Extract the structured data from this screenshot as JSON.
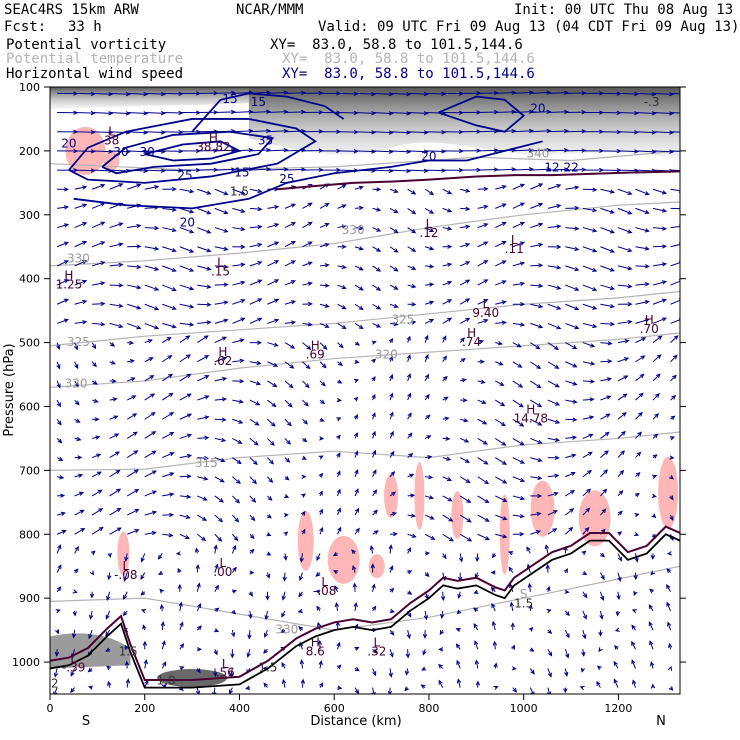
{
  "header": {
    "model": "SEAC4RS 15km ARW",
    "org": "NCAR/MMM",
    "init": "Init: 00 UTC Thu 08 Aug 13",
    "fcst_label": "Fcst:",
    "fcst_value": "33 h",
    "valid": "Valid: 09 UTC Fri 09 Aug 13 (04 CDT Fri 09 Aug 13)"
  },
  "fields": [
    {
      "name": "Potential vorticity",
      "xy": "XY=  83.0, 58.8 to 101.5,144.6",
      "color": "#000000"
    },
    {
      "name": "Potential temperature",
      "xy": "XY=  83.0, 58.8 to 101.5,144.6",
      "color": "#b4b4b4"
    },
    {
      "name": "Horizontal wind speed",
      "xy": "XY=  83.0, 58.8 to 101.5,144.6",
      "color": "#00008b"
    }
  ],
  "colors": {
    "wind": "#00008b",
    "theta": "#b4b4b4",
    "pv_fill": "#ffb6b6",
    "terrain": "#000000",
    "tropopause": "#4b0032"
  },
  "chart_data": {
    "type": "line",
    "title": "",
    "xlabel": "Distance (km)",
    "ylabel": "Pressure (hPa)",
    "xlim": [
      0,
      1330
    ],
    "ylim": [
      1050,
      100
    ],
    "x_ticks": [
      0,
      200,
      400,
      600,
      800,
      1000,
      1200
    ],
    "y_ticks": [
      100,
      200,
      300,
      400,
      500,
      600,
      700,
      800,
      900,
      1000
    ],
    "x_end_labels": {
      "left": "S",
      "right": "N"
    },
    "series": [
      {
        "name": "Potential temperature",
        "levels": [
          310,
          315,
          320,
          325,
          330,
          340
        ]
      },
      {
        "name": "Horizontal wind speed",
        "levels": [
          15,
          20,
          25
        ]
      }
    ],
    "theta_labels": [
      {
        "text": "330",
        "x": 60,
        "y": 375
      },
      {
        "text": "325",
        "x": 60,
        "y": 505
      },
      {
        "text": "320",
        "x": 55,
        "y": 570
      },
      {
        "text": "325",
        "x": 745,
        "y": 470
      },
      {
        "text": "320",
        "x": 710,
        "y": 525
      },
      {
        "text": "315",
        "x": 330,
        "y": 695
      },
      {
        "text": "330",
        "x": 640,
        "y": 330
      },
      {
        "text": "340",
        "x": 1030,
        "y": 210
      },
      {
        "text": "330",
        "x": 500,
        "y": 955
      },
      {
        "text": "S",
        "x": 1000,
        "y": 900
      }
    ],
    "wind_labels": [
      {
        "text": "20",
        "x": 40,
        "y": 195
      },
      {
        "text": "30",
        "x": 150,
        "y": 208
      },
      {
        "text": "30",
        "x": 205,
        "y": 208
      },
      {
        "text": "35",
        "x": 455,
        "y": 190
      },
      {
        "text": "25",
        "x": 285,
        "y": 245
      },
      {
        "text": "20",
        "x": 290,
        "y": 318
      },
      {
        "text": "15",
        "x": 405,
        "y": 240
      },
      {
        "text": "25",
        "x": 500,
        "y": 250
      },
      {
        "text": "20",
        "x": 800,
        "y": 215
      },
      {
        "text": "12.22",
        "x": 1080,
        "y": 232
      },
      {
        "text": "15",
        "x": 380,
        "y": 125
      },
      {
        "text": "15",
        "x": 440,
        "y": 130
      },
      {
        "text": "20",
        "x": 1030,
        "y": 140
      }
    ],
    "extrema": [
      {
        "type": "L",
        "value": "38",
        "x": 130,
        "y": 190
      },
      {
        "type": "H",
        "value": "38.82",
        "x": 345,
        "y": 200
      },
      {
        "type": "H",
        "value": "1.25",
        "x": 40,
        "y": 415
      },
      {
        "type": "L",
        "value": ".15",
        "x": 360,
        "y": 395
      },
      {
        "type": "H",
        "value": ".62",
        "x": 365,
        "y": 535
      },
      {
        "type": "H",
        "value": ".69",
        "x": 560,
        "y": 525
      },
      {
        "type": "L",
        "value": ".12",
        "x": 800,
        "y": 335
      },
      {
        "type": "L",
        "value": ".11",
        "x": 980,
        "y": 360
      },
      {
        "type": "L",
        "value": "9.40",
        "x": 920,
        "y": 460
      },
      {
        "type": "H",
        "value": ".74",
        "x": 890,
        "y": 505
      },
      {
        "type": "H",
        "value": ".70",
        "x": 1265,
        "y": 485
      },
      {
        "type": "H",
        "value": "14.78",
        "x": 1015,
        "y": 625
      },
      {
        "type": "L",
        "value": "-.08",
        "x": 160,
        "y": 870
      },
      {
        "type": "L",
        "value": ".00",
        "x": 365,
        "y": 865
      },
      {
        "type": "L",
        "value": "-.08",
        "x": 580,
        "y": 895
      },
      {
        "type": "H",
        "value": "8.6",
        "x": 560,
        "y": 990
      },
      {
        "type": "L",
        "value": ".32",
        "x": 690,
        "y": 990
      },
      {
        "type": "L",
        "value": ".56",
        "x": 370,
        "y": 1023
      },
      {
        "type": "L",
        "value": "-.39",
        "x": 50,
        "y": 1015
      }
    ],
    "other_labels": [
      {
        "text": "1.5",
        "x": 165,
        "y": 990
      },
      {
        "text": "1.0",
        "x": 245,
        "y": 1035
      },
      {
        "text": "1.5",
        "x": 460,
        "y": 1015
      },
      {
        "text": "1.5",
        "x": 1000,
        "y": 915
      },
      {
        "text": "1.5",
        "x": 400,
        "y": 270
      },
      {
        "text": "-.3",
        "x": 1270,
        "y": 130
      },
      {
        "text": "2",
        "x": 10,
        "y": 1040
      }
    ],
    "terrain_line": [
      [
        0,
        1010
      ],
      [
        40,
        1005
      ],
      [
        80,
        990
      ],
      [
        120,
        960
      ],
      [
        150,
        940
      ],
      [
        170,
        985
      ],
      [
        200,
        1040
      ],
      [
        300,
        1040
      ],
      [
        400,
        1035
      ],
      [
        460,
        1010
      ],
      [
        520,
        975
      ],
      [
        560,
        960
      ],
      [
        600,
        950
      ],
      [
        640,
        945
      ],
      [
        680,
        950
      ],
      [
        720,
        945
      ],
      [
        760,
        920
      ],
      [
        800,
        900
      ],
      [
        830,
        880
      ],
      [
        860,
        885
      ],
      [
        900,
        880
      ],
      [
        940,
        895
      ],
      [
        960,
        900
      ],
      [
        980,
        880
      ],
      [
        1020,
        860
      ],
      [
        1060,
        840
      ],
      [
        1100,
        830
      ],
      [
        1140,
        810
      ],
      [
        1180,
        810
      ],
      [
        1220,
        840
      ],
      [
        1260,
        830
      ],
      [
        1300,
        800
      ],
      [
        1330,
        810
      ]
    ],
    "tropopause_line": [
      [
        480,
        260
      ],
      [
        560,
        255
      ],
      [
        640,
        250
      ],
      [
        720,
        248
      ],
      [
        800,
        245
      ],
      [
        900,
        240
      ],
      [
        980,
        238
      ],
      [
        1060,
        238
      ],
      [
        1140,
        236
      ],
      [
        1220,
        234
      ],
      [
        1330,
        232
      ]
    ]
  }
}
